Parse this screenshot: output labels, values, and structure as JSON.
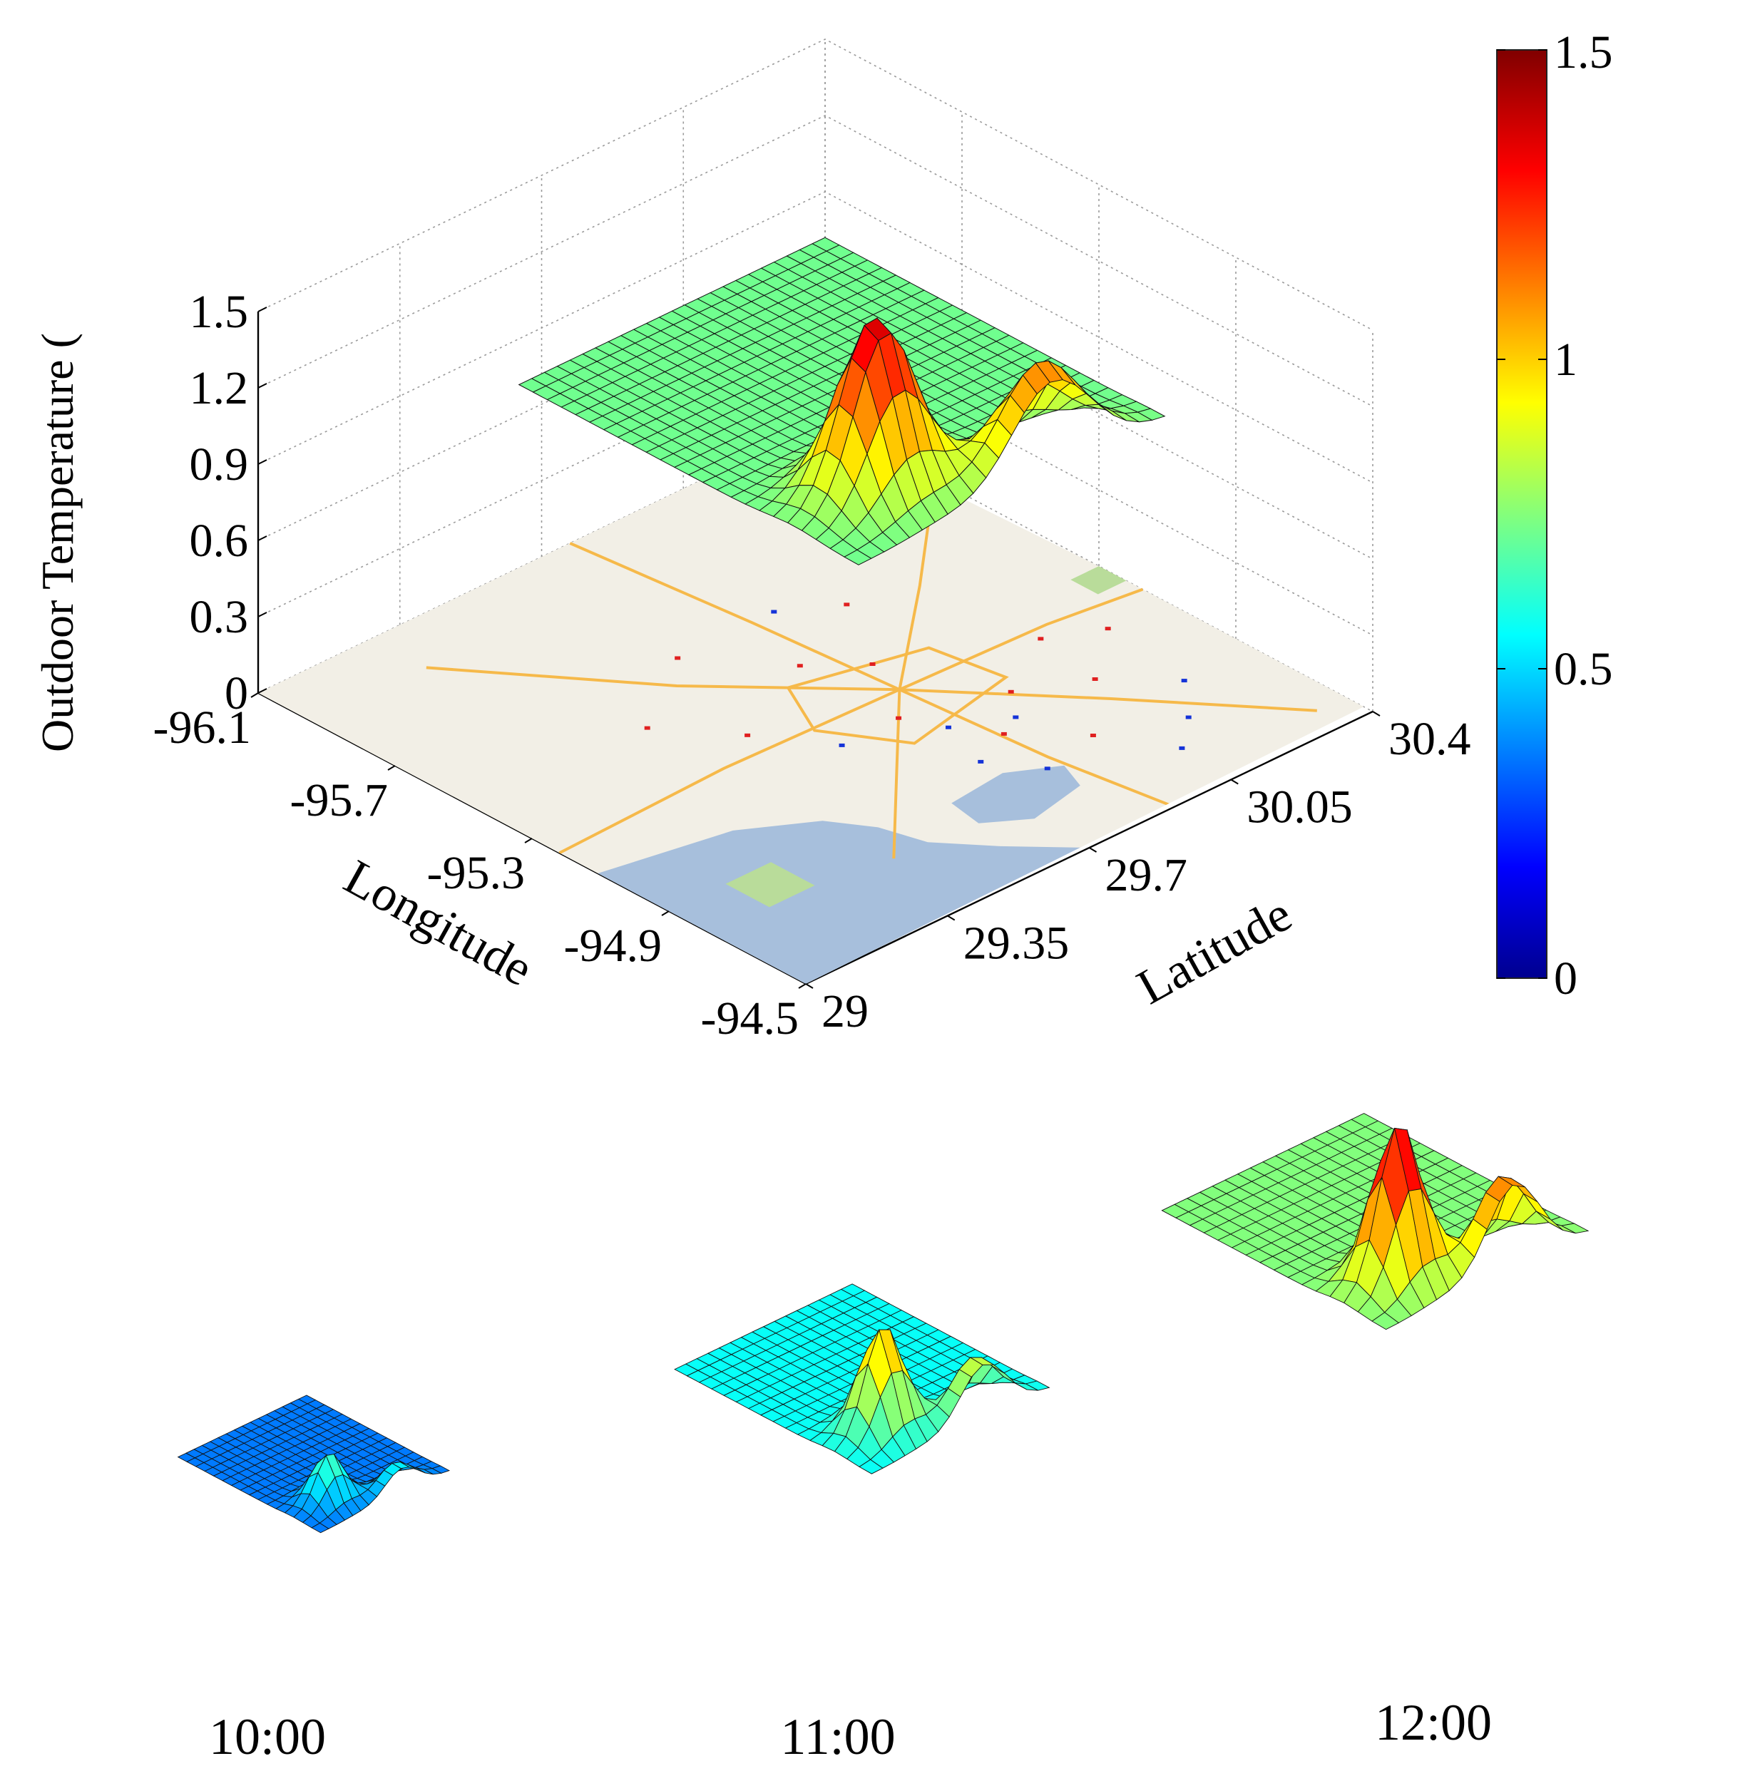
{
  "chart_data": {
    "type": "surface3d",
    "title": "",
    "zlabel": "Outdoor Temperature (",
    "xlabel": "Longitude",
    "ylabel": "Latitude",
    "x_ticks": [
      "-96.1",
      "-95.7",
      "-95.3",
      "-94.9",
      "-94.5"
    ],
    "y_ticks": [
      "29",
      "29.35",
      "29.7",
      "30.05",
      "30.4"
    ],
    "z_ticks": [
      "0",
      "0.3",
      "0.6",
      "0.9",
      "1.2",
      "1.5"
    ],
    "xlim": [
      -96.1,
      -94.5
    ],
    "ylim": [
      29,
      30.4
    ],
    "zlim": [
      0,
      1.5
    ],
    "grid": true,
    "colorbar": {
      "ticks": [
        "0",
        "0.5",
        "1",
        "1.5"
      ],
      "range": [
        0,
        1.5
      ],
      "colormap": "jet",
      "stops": [
        "#00008f",
        "#0000ff",
        "#00ffff",
        "#ffff00",
        "#ff0000",
        "#800000"
      ]
    },
    "base_map": {
      "land_color": "#f2efe6",
      "water_color": "#a7bfdc",
      "road_color": "#f6b94a",
      "park_color": "#b9dc9a"
    },
    "stations": {
      "red_color": "#e02020",
      "blue_color": "#1533d8"
    },
    "surface_peak": {
      "x": -95.3,
      "y": 29.85,
      "z": 1.4
    },
    "panels": [
      {
        "label": "10:00",
        "peak": 0.7
      },
      {
        "label": "11:00",
        "peak": 1.1
      },
      {
        "label": "12:00",
        "peak": 1.45
      }
    ]
  }
}
